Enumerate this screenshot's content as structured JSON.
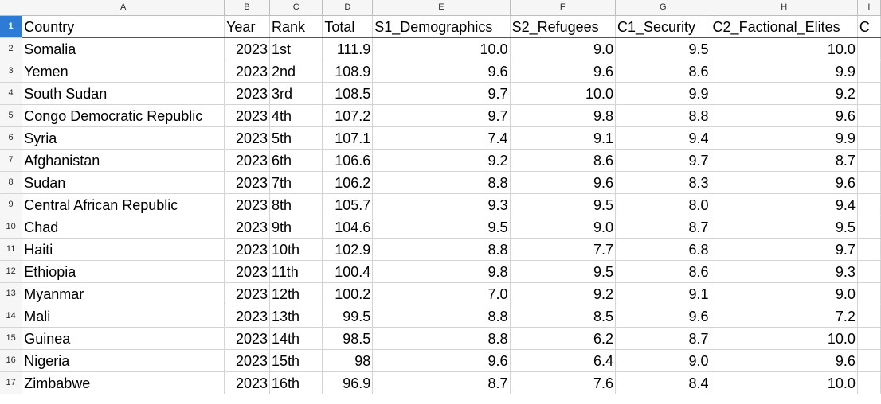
{
  "columns": [
    "A",
    "B",
    "C",
    "D",
    "E",
    "F",
    "G",
    "H",
    "I"
  ],
  "header_row": {
    "row_number": "1",
    "cells": [
      "Country",
      "Year",
      "Rank",
      "Total",
      "S1_Demographics",
      "S2_Refugees",
      "C1_Security",
      "C2_Factional_Elites",
      "C"
    ]
  },
  "rows": [
    {
      "n": "2",
      "country": "Somalia",
      "year": "2023",
      "rank": "1st",
      "total": "111.9",
      "s1": "10.0",
      "s2": "9.0",
      "c1": "9.5",
      "c2": "10.0"
    },
    {
      "n": "3",
      "country": "Yemen",
      "year": "2023",
      "rank": "2nd",
      "total": "108.9",
      "s1": "9.6",
      "s2": "9.6",
      "c1": "8.6",
      "c2": "9.9"
    },
    {
      "n": "4",
      "country": "South Sudan",
      "year": "2023",
      "rank": "3rd",
      "total": "108.5",
      "s1": "9.7",
      "s2": "10.0",
      "c1": "9.9",
      "c2": "9.2"
    },
    {
      "n": "5",
      "country": "Congo Democratic Republic",
      "year": "2023",
      "rank": "4th",
      "total": "107.2",
      "s1": "9.7",
      "s2": "9.8",
      "c1": "8.8",
      "c2": "9.6"
    },
    {
      "n": "6",
      "country": "Syria",
      "year": "2023",
      "rank": "5th",
      "total": "107.1",
      "s1": "7.4",
      "s2": "9.1",
      "c1": "9.4",
      "c2": "9.9"
    },
    {
      "n": "7",
      "country": "Afghanistan",
      "year": "2023",
      "rank": "6th",
      "total": "106.6",
      "s1": "9.2",
      "s2": "8.6",
      "c1": "9.7",
      "c2": "8.7"
    },
    {
      "n": "8",
      "country": "Sudan",
      "year": "2023",
      "rank": "7th",
      "total": "106.2",
      "s1": "8.8",
      "s2": "9.6",
      "c1": "8.3",
      "c2": "9.6"
    },
    {
      "n": "9",
      "country": "Central African Republic",
      "year": "2023",
      "rank": "8th",
      "total": "105.7",
      "s1": "9.3",
      "s2": "9.5",
      "c1": "8.0",
      "c2": "9.4"
    },
    {
      "n": "10",
      "country": "Chad",
      "year": "2023",
      "rank": "9th",
      "total": "104.6",
      "s1": "9.5",
      "s2": "9.0",
      "c1": "8.7",
      "c2": "9.5"
    },
    {
      "n": "11",
      "country": "Haiti",
      "year": "2023",
      "rank": "10th",
      "total": "102.9",
      "s1": "8.8",
      "s2": "7.7",
      "c1": "6.8",
      "c2": "9.7"
    },
    {
      "n": "12",
      "country": "Ethiopia",
      "year": "2023",
      "rank": "11th",
      "total": "100.4",
      "s1": "9.8",
      "s2": "9.5",
      "c1": "8.6",
      "c2": "9.3"
    },
    {
      "n": "13",
      "country": "Myanmar",
      "year": "2023",
      "rank": "12th",
      "total": "100.2",
      "s1": "7.0",
      "s2": "9.2",
      "c1": "9.1",
      "c2": "9.0"
    },
    {
      "n": "14",
      "country": "Mali",
      "year": "2023",
      "rank": "13th",
      "total": "99.5",
      "s1": "8.8",
      "s2": "8.5",
      "c1": "9.6",
      "c2": "7.2"
    },
    {
      "n": "15",
      "country": "Guinea",
      "year": "2023",
      "rank": "14th",
      "total": "98.5",
      "s1": "8.8",
      "s2": "6.2",
      "c1": "8.7",
      "c2": "10.0"
    },
    {
      "n": "16",
      "country": "Nigeria",
      "year": "2023",
      "rank": "15th",
      "total": "98",
      "s1": "9.6",
      "s2": "6.4",
      "c1": "9.0",
      "c2": "9.6"
    },
    {
      "n": "17",
      "country": "Zimbabwe",
      "year": "2023",
      "rank": "16th",
      "total": "96.9",
      "s1": "8.7",
      "s2": "7.6",
      "c1": "8.4",
      "c2": "10.0"
    }
  ]
}
